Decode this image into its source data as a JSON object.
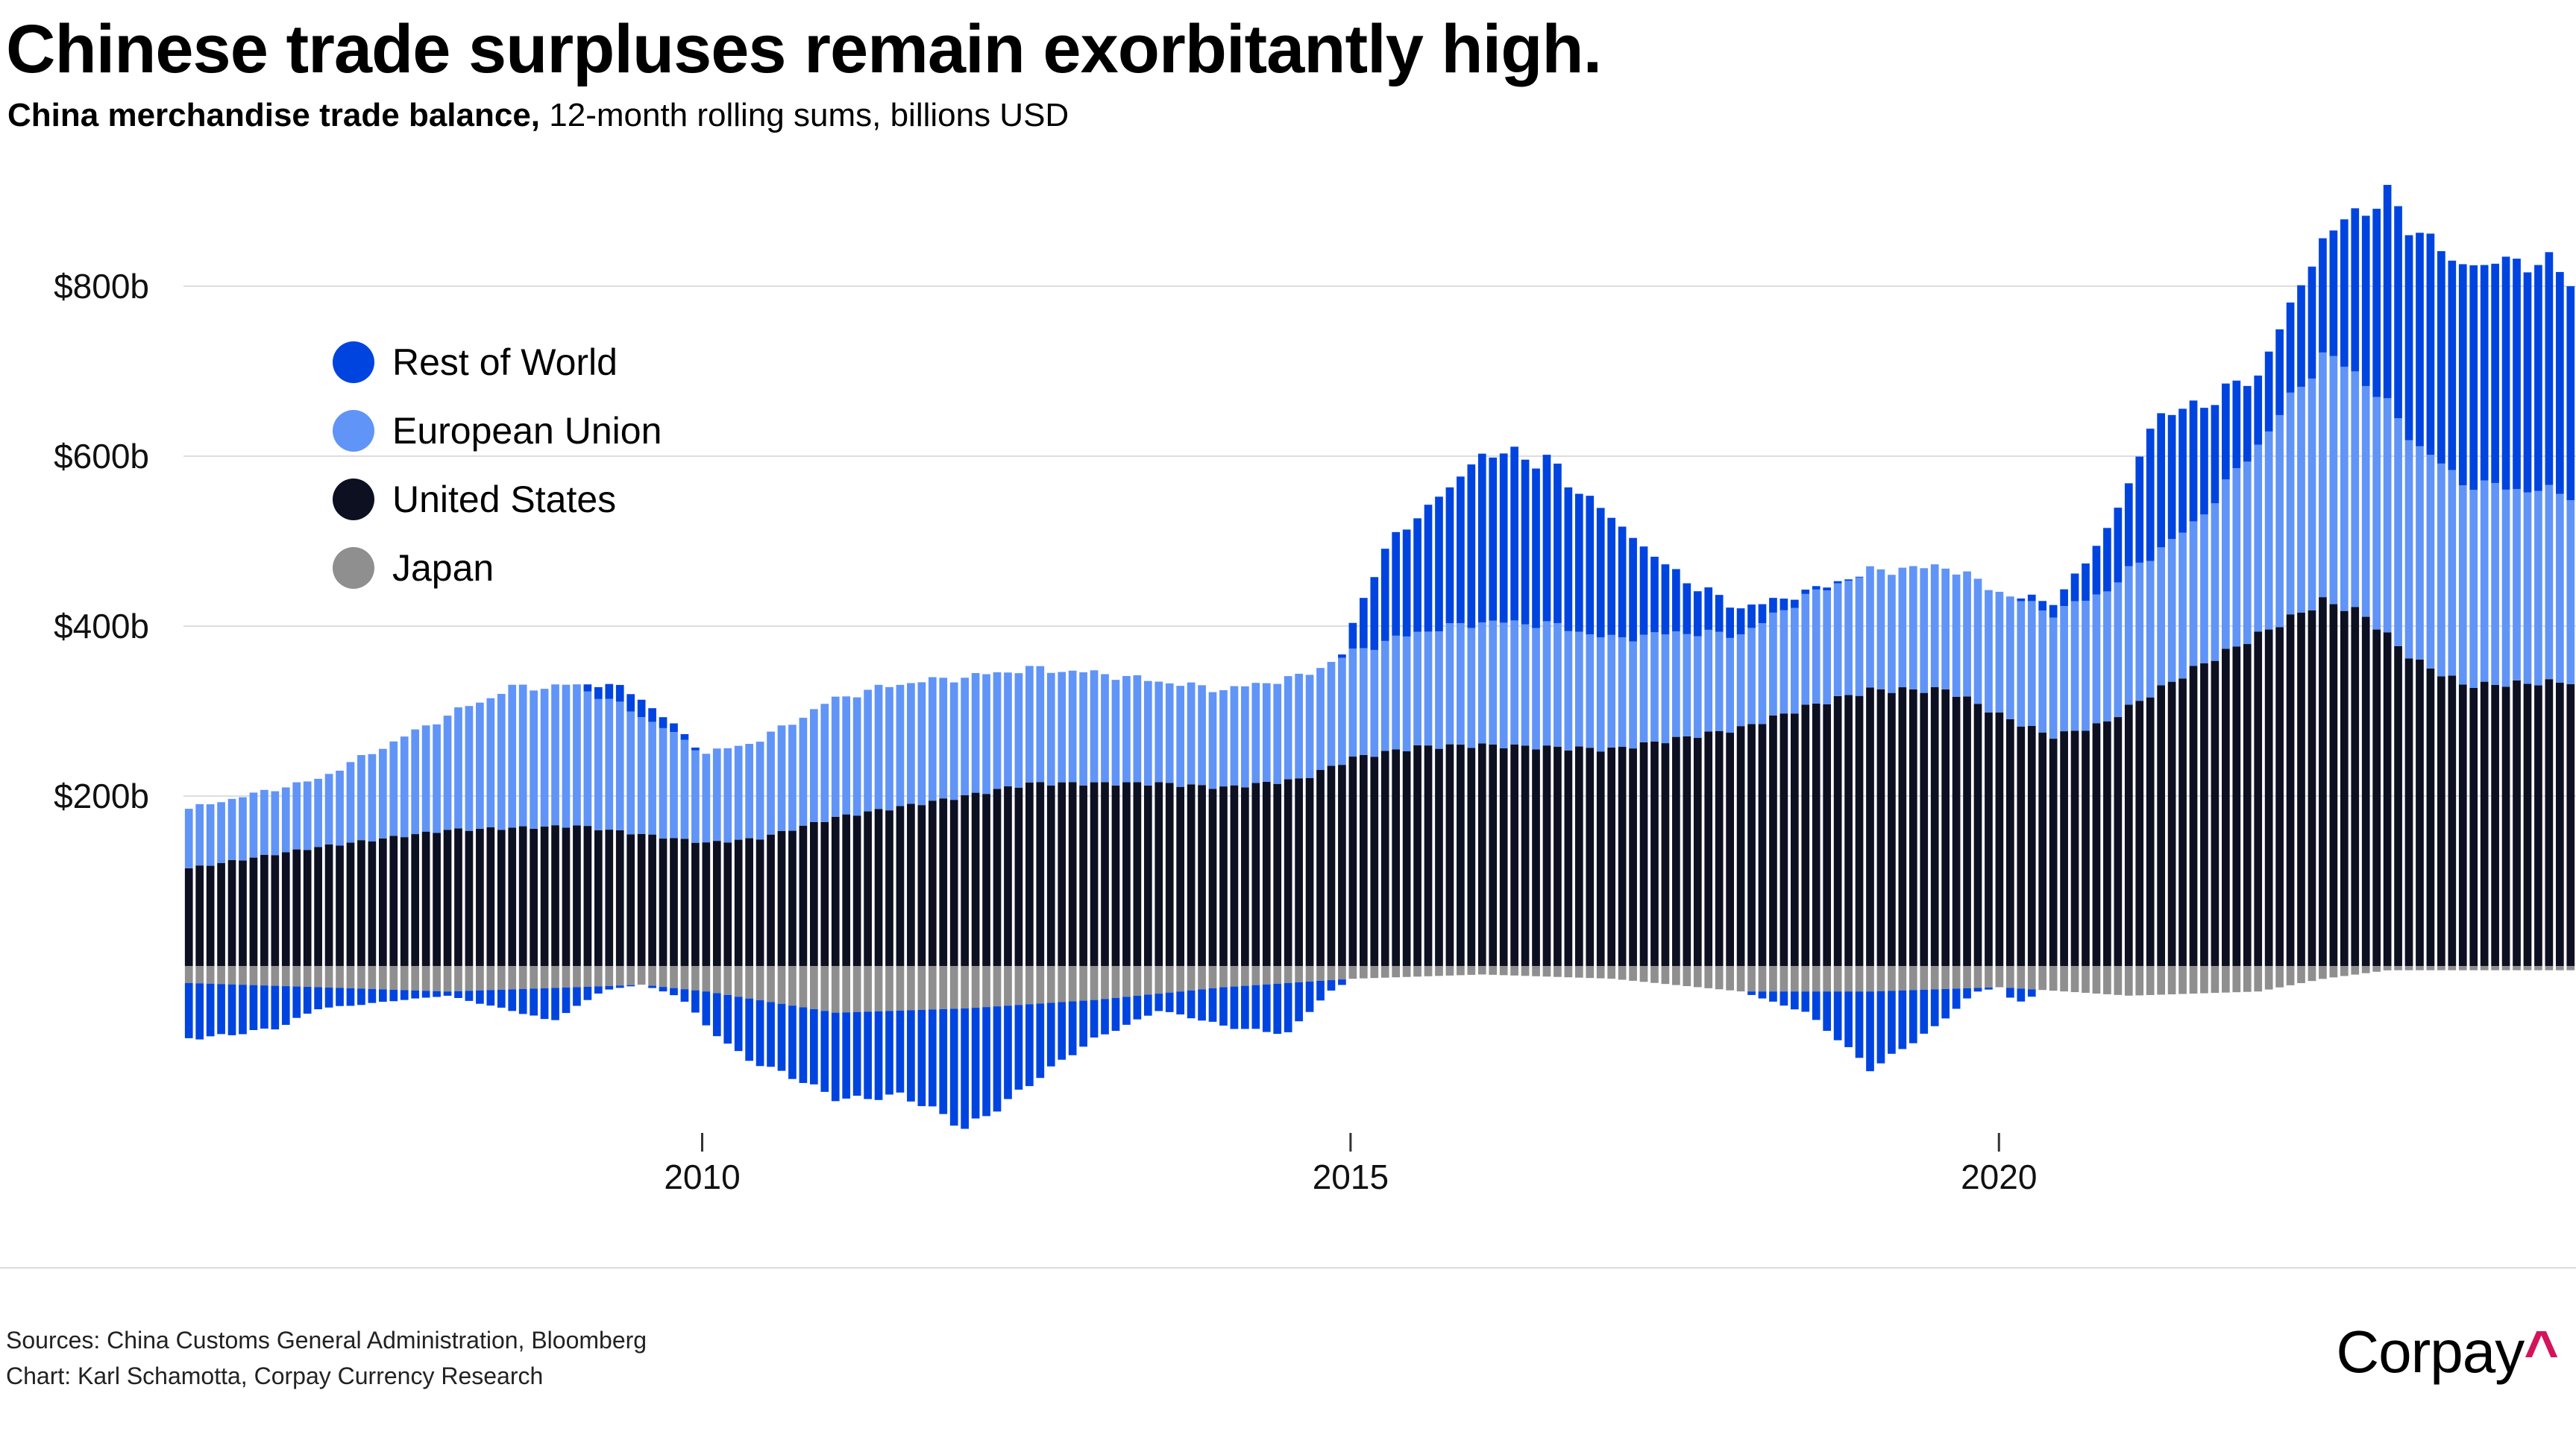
{
  "title": "Chinese trade surpluses remain exorbitantly high.",
  "subtitle_bold": "China merchandise trade balance,",
  "subtitle_rest": " 12-month rolling sums, billions USD",
  "legend": [
    {
      "label": "Rest of World",
      "color": "#0044e0"
    },
    {
      "label": "European Union",
      "color": "#6194f7"
    },
    {
      "label": "United States",
      "color": "#0d1021"
    },
    {
      "label": "Japan",
      "color": "#8f8f8f"
    }
  ],
  "footer": {
    "sources": "Sources: China Customs General Administration, Bloomberg",
    "credit": "Chart: Karl Schamotta, Corpay Currency Research"
  },
  "brand": {
    "name": "Corpay",
    "mark": "^"
  },
  "chart_data": {
    "type": "bar",
    "stacked": true,
    "title": "Chinese trade surpluses remain exorbitantly high.",
    "subtitle": "China merchandise trade balance, 12-month rolling sums, billions USD",
    "xlabel": "",
    "ylabel": "",
    "x_start": 2006.0,
    "x_step": 0.0833,
    "xlim": [
      2006.0,
      2024.45
    ],
    "ylim": [
      -200,
      900
    ],
    "xticks": [
      {
        "value": 2010,
        "label": "2010"
      },
      {
        "value": 2015,
        "label": "2015"
      },
      {
        "value": 2020,
        "label": "2020"
      }
    ],
    "yticks": [
      {
        "value": 800,
        "label": "$800b"
      },
      {
        "value": 600,
        "label": "$600b"
      },
      {
        "value": 400,
        "label": "$400b"
      },
      {
        "value": 200,
        "label": "$200b"
      }
    ],
    "legend_position": "top-left",
    "anchors": {
      "United States": [
        [
          2006.0,
          115
        ],
        [
          2007.0,
          140
        ],
        [
          2008.0,
          160
        ],
        [
          2009.0,
          165
        ],
        [
          2009.5,
          155
        ],
        [
          2010.0,
          145
        ],
        [
          2010.4,
          150
        ],
        [
          2011.0,
          175
        ],
        [
          2012.0,
          200
        ],
        [
          2012.5,
          215
        ],
        [
          2013.5,
          215
        ],
        [
          2014.0,
          210
        ],
        [
          2014.6,
          220
        ],
        [
          2015.0,
          245
        ],
        [
          2015.5,
          258
        ],
        [
          2016.0,
          260
        ],
        [
          2017.0,
          255
        ],
        [
          2018.0,
          280
        ],
        [
          2018.5,
          305
        ],
        [
          2019.0,
          325
        ],
        [
          2019.6,
          325
        ],
        [
          2020.0,
          295
        ],
        [
          2020.4,
          270
        ],
        [
          2020.8,
          285
        ],
        [
          2021.0,
          305
        ],
        [
          2021.5,
          350
        ],
        [
          2022.0,
          390
        ],
        [
          2022.5,
          430
        ],
        [
          2022.8,
          415
        ],
        [
          2023.2,
          360
        ],
        [
          2023.6,
          330
        ],
        [
          2024.45,
          335
        ]
      ],
      "European Union": [
        [
          2006.0,
          70
        ],
        [
          2007.0,
          80
        ],
        [
          2008.0,
          135
        ],
        [
          2008.5,
          165
        ],
        [
          2009.0,
          165
        ],
        [
          2009.5,
          140
        ],
        [
          2010.0,
          105
        ],
        [
          2010.4,
          115
        ],
        [
          2011.0,
          140
        ],
        [
          2011.5,
          145
        ],
        [
          2012.0,
          140
        ],
        [
          2012.5,
          135
        ],
        [
          2013.0,
          130
        ],
        [
          2013.5,
          120
        ],
        [
          2014.0,
          115
        ],
        [
          2014.5,
          120
        ],
        [
          2015.0,
          125
        ],
        [
          2015.5,
          135
        ],
        [
          2016.0,
          145
        ],
        [
          2016.5,
          145
        ],
        [
          2017.0,
          130
        ],
        [
          2017.5,
          125
        ],
        [
          2018.0,
          110
        ],
        [
          2018.5,
          130
        ],
        [
          2019.0,
          140
        ],
        [
          2019.5,
          145
        ],
        [
          2020.0,
          145
        ],
        [
          2020.4,
          145
        ],
        [
          2021.0,
          160
        ],
        [
          2021.5,
          170
        ],
        [
          2022.0,
          225
        ],
        [
          2022.5,
          290
        ],
        [
          2023.0,
          270
        ],
        [
          2023.5,
          240
        ],
        [
          2024.45,
          220
        ]
      ],
      "Rest of World": [
        [
          2006.0,
          0
        ],
        [
          2009.0,
          0
        ],
        [
          2009.1,
          10
        ],
        [
          2009.3,
          20
        ],
        [
          2009.5,
          20
        ],
        [
          2009.7,
          12
        ],
        [
          2010.0,
          0
        ],
        [
          2014.9,
          0
        ],
        [
          2015.0,
          30
        ],
        [
          2015.2,
          100
        ],
        [
          2015.5,
          140
        ],
        [
          2016.0,
          195
        ],
        [
          2016.5,
          195
        ],
        [
          2017.0,
          140
        ],
        [
          2017.3,
          95
        ],
        [
          2017.6,
          60
        ],
        [
          2018.0,
          30
        ],
        [
          2018.3,
          15
        ],
        [
          2018.5,
          5
        ],
        [
          2019.0,
          0
        ],
        [
          2020.1,
          0
        ],
        [
          2020.5,
          20
        ],
        [
          2021.0,
          100
        ],
        [
          2021.2,
          160
        ],
        [
          2021.5,
          140
        ],
        [
          2022.0,
          80
        ],
        [
          2022.5,
          140
        ],
        [
          2023.0,
          240
        ],
        [
          2023.5,
          260
        ],
        [
          2024.45,
          265
        ]
      ],
      "Japan": [
        [
          2006.0,
          -20
        ],
        [
          2007.0,
          -25
        ],
        [
          2008.0,
          -30
        ],
        [
          2009.0,
          -25
        ],
        [
          2009.5,
          -22
        ],
        [
          2010.0,
          -30
        ],
        [
          2011.0,
          -55
        ],
        [
          2012.0,
          -50
        ],
        [
          2013.0,
          -40
        ],
        [
          2014.0,
          -25
        ],
        [
          2015.0,
          -15
        ],
        [
          2016.0,
          -10
        ],
        [
          2017.0,
          -15
        ],
        [
          2018.0,
          -30
        ],
        [
          2019.0,
          -30
        ],
        [
          2020.0,
          -25
        ],
        [
          2021.0,
          -35
        ],
        [
          2022.0,
          -30
        ],
        [
          2022.5,
          -15
        ],
        [
          2023.0,
          -5
        ],
        [
          2024.45,
          -5
        ]
      ],
      "Rest of World (negative)": [
        [
          2006.0,
          -65
        ],
        [
          2006.7,
          -50
        ],
        [
          2007.0,
          -25
        ],
        [
          2007.5,
          -15
        ],
        [
          2008.0,
          -5
        ],
        [
          2008.5,
          -25
        ],
        [
          2008.8,
          -40
        ],
        [
          2009.2,
          -5
        ],
        [
          2009.5,
          0
        ],
        [
          2009.8,
          -10
        ],
        [
          2010.0,
          -40
        ],
        [
          2010.3,
          -70
        ],
        [
          2011.0,
          -100
        ],
        [
          2011.5,
          -100
        ],
        [
          2012.0,
          -140
        ],
        [
          2012.5,
          -95
        ],
        [
          2013.0,
          -45
        ],
        [
          2013.5,
          -20
        ],
        [
          2014.0,
          -45
        ],
        [
          2014.5,
          -60
        ],
        [
          2014.8,
          -15
        ],
        [
          2015.0,
          0
        ],
        [
          2018.0,
          0
        ],
        [
          2018.5,
          -25
        ],
        [
          2019.0,
          -90
        ],
        [
          2019.5,
          -45
        ],
        [
          2019.8,
          -5
        ],
        [
          2020.0,
          0
        ],
        [
          2020.1,
          -15
        ],
        [
          2020.2,
          -15
        ],
        [
          2020.3,
          0
        ],
        [
          2024.45,
          0
        ]
      ]
    },
    "series": [
      {
        "name": "United States",
        "color": "#0d1021"
      },
      {
        "name": "European Union",
        "color": "#6194f7"
      },
      {
        "name": "Rest of World",
        "color": "#0044e0"
      },
      {
        "name": "Japan",
        "color": "#8f8f8f"
      }
    ]
  }
}
